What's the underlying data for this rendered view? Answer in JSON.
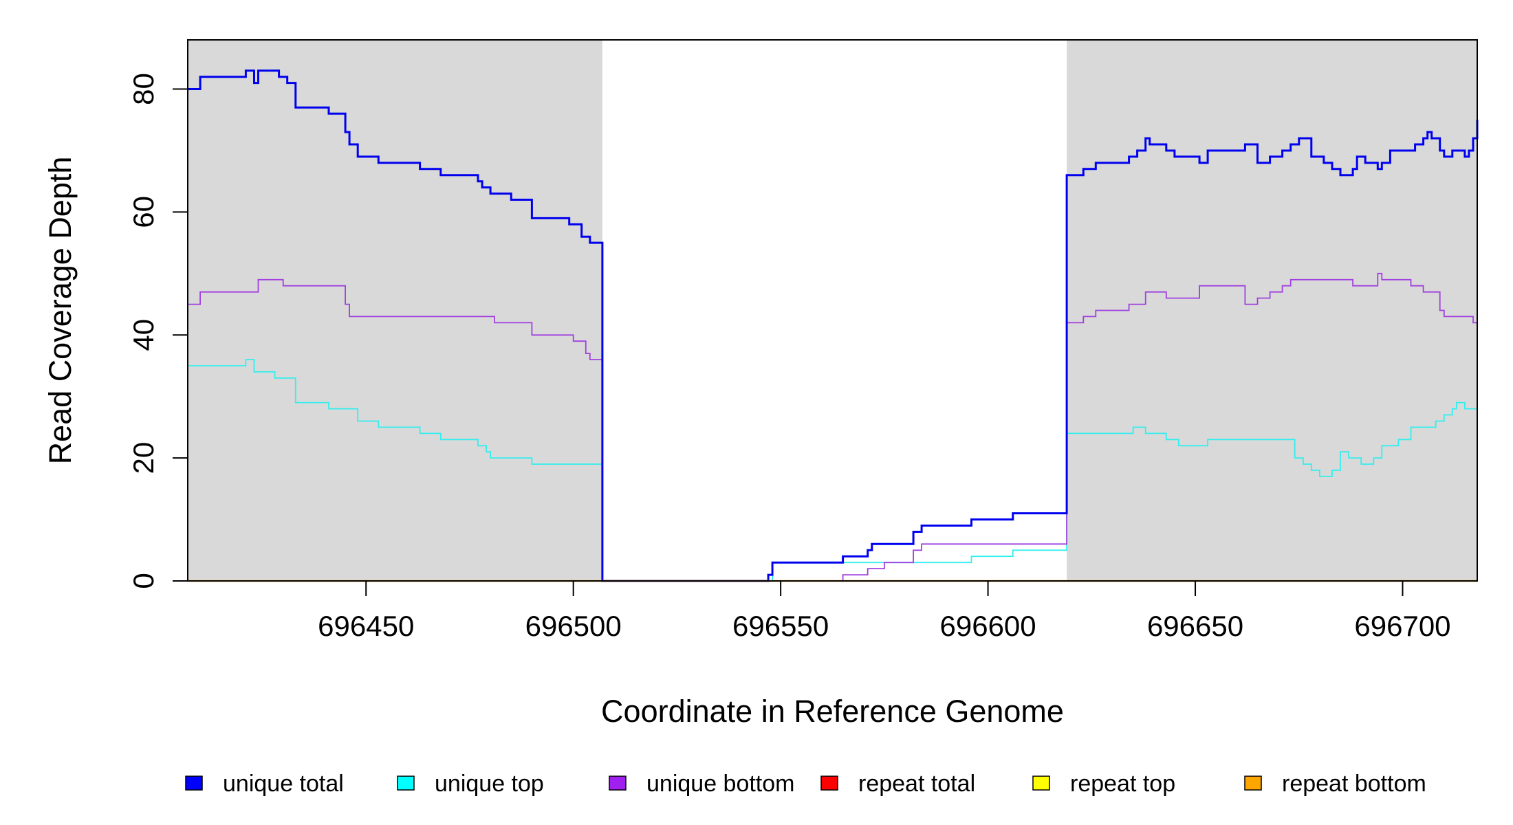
{
  "chart_data": {
    "type": "line",
    "xlabel": "Coordinate in Reference Genome",
    "ylabel": "Read Coverage Depth",
    "xlim": [
      696407,
      696718
    ],
    "ylim": [
      0,
      88
    ],
    "x_ticks": [
      696450,
      696500,
      696550,
      696600,
      696650,
      696700
    ],
    "y_ticks": [
      0,
      20,
      40,
      60,
      80
    ],
    "shaded_regions": [
      [
        696407,
        696507
      ],
      [
        696619,
        696718
      ]
    ],
    "grid": false,
    "legend_position": "bottom",
    "colors": {
      "unique total": "#0000ee",
      "unique top": "#33eeee",
      "unique bottom": "#a040e0",
      "repeat total": "#ff0000",
      "repeat top": "#ffff00",
      "repeat bottom": "#ffa500",
      "shade": "#d9d9d9"
    },
    "legend": [
      {
        "label": "unique total",
        "color": "#0000ff"
      },
      {
        "label": "unique top",
        "color": "#00ffff"
      },
      {
        "label": "unique bottom",
        "color": "#a020f0"
      },
      {
        "label": "repeat total",
        "color": "#ff0000"
      },
      {
        "label": "repeat top",
        "color": "#ffff00"
      },
      {
        "label": "repeat bottom",
        "color": "#ffa500"
      }
    ],
    "series": [
      {
        "name": "unique total",
        "x": [
          696407,
          696410,
          696421,
          696423,
          696424,
          696425,
          696429,
          696431,
          696433,
          696441,
          696445,
          696446,
          696448,
          696453,
          696463,
          696468,
          696477,
          696478,
          696480,
          696485,
          696490,
          696499,
          696502,
          696504,
          696506,
          696507,
          696547,
          696548,
          696565,
          696571,
          696572,
          696575,
          696582,
          696584,
          696596,
          696606,
          696619,
          696623,
          696626,
          696634,
          696636,
          696638,
          696639,
          696643,
          696645,
          696651,
          696653,
          696662,
          696665,
          696668,
          696671,
          696673,
          696675,
          696678,
          696681,
          696683,
          696685,
          696688,
          696689,
          696691,
          696694,
          696695,
          696697,
          696703,
          696705,
          696706,
          696707,
          696709,
          696710,
          696712,
          696715,
          696716,
          696717,
          696718
        ],
        "y": [
          80,
          82,
          83,
          81,
          83,
          83,
          82,
          81,
          77,
          76,
          73,
          71,
          69,
          68,
          67,
          66,
          65,
          64,
          63,
          62,
          59,
          58,
          56,
          55,
          55,
          0,
          1,
          3,
          4,
          5,
          6,
          6,
          8,
          9,
          10,
          11,
          66,
          67,
          68,
          69,
          70,
          72,
          71,
          70,
          69,
          68,
          70,
          71,
          68,
          69,
          70,
          71,
          72,
          69,
          68,
          67,
          66,
          67,
          69,
          68,
          67,
          68,
          70,
          71,
          72,
          73,
          72,
          70,
          69,
          70,
          69,
          70,
          72,
          75
        ]
      },
      {
        "name": "unique top",
        "x": [
          696407,
          696421,
          696423,
          696428,
          696433,
          696441,
          696448,
          696453,
          696463,
          696468,
          696477,
          696479,
          696480,
          696490,
          696506,
          696507,
          696548,
          696565,
          696572,
          696596,
          696606,
          696619,
          696635,
          696638,
          696640,
          696643,
          696646,
          696653,
          696674,
          696676,
          696678,
          696680,
          696683,
          696685,
          696687,
          696688,
          696690,
          696693,
          696695,
          696699,
          696700,
          696702,
          696708,
          696710,
          696712,
          696713,
          696715,
          696718
        ],
        "y": [
          35,
          36,
          34,
          33,
          29,
          28,
          26,
          25,
          24,
          23,
          22,
          21,
          20,
          19,
          19,
          0,
          3,
          3,
          3,
          4,
          5,
          24,
          25,
          24,
          24,
          23,
          22,
          23,
          20,
          19,
          18,
          17,
          18,
          21,
          20,
          20,
          19,
          20,
          22,
          23,
          23,
          25,
          26,
          27,
          28,
          29,
          28,
          28
        ]
      },
      {
        "name": "unique bottom",
        "x": [
          696407,
          696410,
          696424,
          696430,
          696445,
          696446,
          696481,
          696490,
          696500,
          696503,
          696504,
          696506,
          696507,
          696565,
          696571,
          696572,
          696575,
          696582,
          696584,
          696619,
          696623,
          696626,
          696634,
          696638,
          696643,
          696651,
          696662,
          696665,
          696668,
          696671,
          696673,
          696674,
          696688,
          696689,
          696694,
          696695,
          696700,
          696702,
          696705,
          696709,
          696710,
          696712,
          696717,
          696718
        ],
        "y": [
          45,
          47,
          49,
          48,
          45,
          43,
          42,
          40,
          39,
          37,
          36,
          36,
          0,
          1,
          2,
          2,
          3,
          5,
          6,
          42,
          43,
          44,
          45,
          47,
          46,
          48,
          45,
          46,
          47,
          48,
          49,
          49,
          48,
          48,
          50,
          49,
          49,
          48,
          47,
          44,
          43,
          43,
          42,
          44
        ]
      },
      {
        "name": "repeat total",
        "x": [
          696407,
          696718
        ],
        "y": [
          0,
          0
        ]
      },
      {
        "name": "repeat top",
        "x": [
          696407,
          696718
        ],
        "y": [
          0,
          0
        ]
      },
      {
        "name": "repeat bottom",
        "x": [
          696407,
          696718
        ],
        "y": [
          0,
          0
        ]
      }
    ]
  }
}
